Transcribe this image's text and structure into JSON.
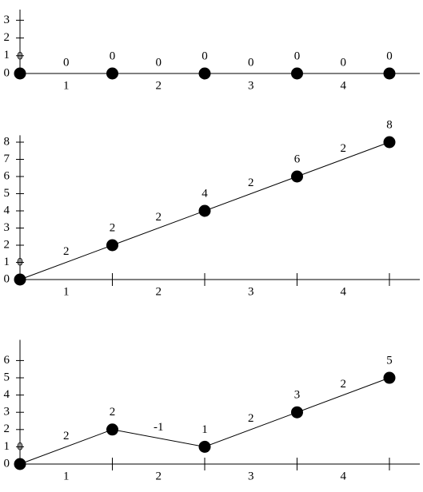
{
  "chart_data": [
    {
      "type": "line",
      "values": [
        0,
        0,
        0,
        0,
        0
      ],
      "slopes": [
        0,
        0,
        0,
        0
      ],
      "interval_labels": [
        1,
        2,
        3,
        4
      ],
      "ylim": [
        0,
        3.6
      ],
      "yticks": [
        0,
        1,
        2,
        3
      ],
      "x_tick_marks": false,
      "color": "#000000"
    },
    {
      "type": "line",
      "values": [
        0,
        2,
        4,
        6,
        8
      ],
      "slopes": [
        2,
        2,
        2,
        2
      ],
      "interval_labels": [
        1,
        2,
        3,
        4
      ],
      "ylim": [
        0,
        8.4
      ],
      "yticks": [
        0,
        1,
        2,
        3,
        4,
        5,
        6,
        7,
        8
      ],
      "x_tick_marks": true,
      "color": "#000000"
    },
    {
      "type": "line",
      "values": [
        0,
        2,
        1,
        3,
        5
      ],
      "slopes": [
        2,
        -1,
        2,
        2
      ],
      "interval_labels": [
        1,
        2,
        3,
        4
      ],
      "ylim": [
        0,
        7.2
      ],
      "yticks": [
        0,
        1,
        2,
        3,
        4,
        5,
        6
      ],
      "x_tick_marks": true,
      "color": "#000000"
    }
  ]
}
